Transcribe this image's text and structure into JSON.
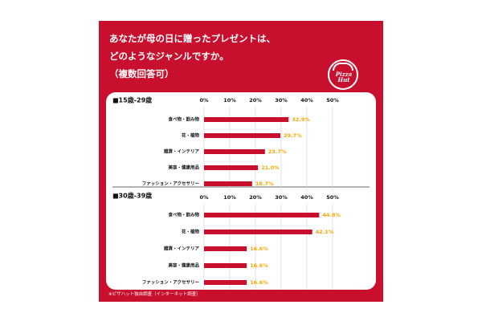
{
  "title_lines": [
    "あなたが母の日に贈ったプレゼントは、",
    "どのようなジャンルですか。",
    "（複数回答可）"
  ],
  "logo": {
    "brand_line1": "Pizza",
    "brand_line2": "Hut",
    "icon": "pizza-hut-logo-icon"
  },
  "footnote": "※ピザハット独自調査（インターネット調査）",
  "colors": {
    "brand": "#c8102e",
    "bar": "#c8102e",
    "value_label": "#f5a800",
    "text": "#111111"
  },
  "chart_data": [
    {
      "type": "bar",
      "title": "■15歳-29歳",
      "categories": [
        "食べ物・飲み物",
        "花・植物",
        "雑貨・インテリア",
        "美容・健康用品",
        "ファッション・アクセサリー"
      ],
      "values": [
        32.9,
        29.7,
        23.7,
        21.0,
        18.7
      ],
      "value_labels": [
        "32.9%",
        "29.7%",
        "23.7%",
        "21.0%",
        "18.7%"
      ],
      "x_ticks": [
        "0%",
        "10%",
        "20%",
        "30%",
        "40%",
        "50%"
      ],
      "xlim": [
        0,
        50
      ],
      "orientation": "horizontal",
      "grid": true
    },
    {
      "type": "bar",
      "title": "■30歳-39歳",
      "categories": [
        "食べ物・飲み物",
        "花・植物",
        "雑貨・インテリア",
        "美容・健康用品",
        "ファッション・アクセサリー"
      ],
      "values": [
        44.8,
        42.1,
        16.6,
        16.6,
        16.6
      ],
      "value_labels": [
        "44.8%",
        "42.1%",
        "16.6%",
        "16.6%",
        "16.6%"
      ],
      "x_ticks": [
        "0%",
        "10%",
        "20%",
        "30%",
        "40%",
        "50%"
      ],
      "xlim": [
        0,
        50
      ],
      "orientation": "horizontal",
      "grid": true
    }
  ]
}
